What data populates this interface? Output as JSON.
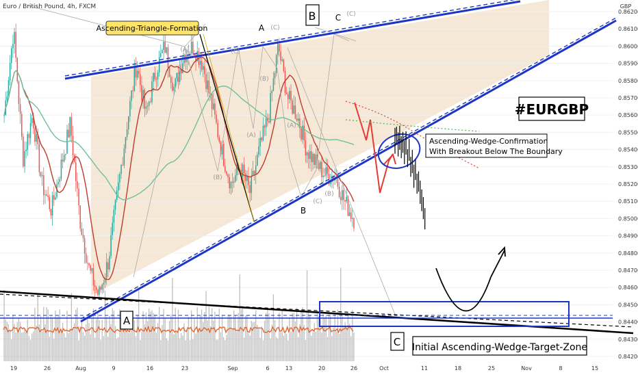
{
  "header": {
    "symbol_title": "Euro / British Pound, 4h, FXCM"
  },
  "currency_label": "GBP",
  "colors": {
    "up_candle": "#26a69a",
    "down_candle": "#ef5350",
    "zone_fill": "#f6e8d6",
    "trendline": "#1c35c4",
    "ma_red": "#c0392b",
    "ma_green": "#6fbf9a",
    "volume": "#888888",
    "projection": "#e53935"
  },
  "annotations": {
    "formation_label": "Ascending-Triangle-Formation",
    "hashtag": "#EURGBP",
    "confirmation_line1": "Ascending-Wedge-Confirmation",
    "confirmation_line2": "With Breakout Below The Boundary",
    "target_zone_label": "Initial Ascending-Wedge-Target-Zone",
    "box_a": "A",
    "box_b": "B",
    "box_c": "C",
    "wave_a": "A",
    "wave_b": "B",
    "wave_c": "C",
    "sub_a": "(A)",
    "sub_b": "(B)",
    "sub_c": "(C)"
  },
  "chart_data": {
    "type": "candlestick",
    "price_axis": {
      "ticks": [
        "0.86200",
        "0.86100",
        "0.86000",
        "0.85900",
        "0.85800",
        "0.85700",
        "0.85600",
        "0.85500",
        "0.85400",
        "0.85300",
        "0.85200",
        "0.85100",
        "0.85000",
        "0.84900",
        "0.84800",
        "0.84700",
        "0.84600",
        "0.84500",
        "0.84400",
        "0.84300",
        "0.84200"
      ],
      "range": [
        0.8419,
        0.8624
      ]
    },
    "time_axis": {
      "ticks": [
        "19",
        "26",
        "Aug",
        "9",
        "16",
        "23",
        "Sep",
        "6",
        "13",
        "20",
        "26",
        "Oct",
        "11",
        "18",
        "25",
        "Nov",
        "8",
        "15"
      ]
    },
    "price_path": [
      0.856,
      0.861,
      0.8535,
      0.856,
      0.852,
      0.8505,
      0.853,
      0.8555,
      0.85,
      0.847,
      0.8455,
      0.8475,
      0.8515,
      0.8555,
      0.859,
      0.856,
      0.8585,
      0.86,
      0.8575,
      0.8595,
      0.86,
      0.859,
      0.8565,
      0.854,
      0.852,
      0.853,
      0.8515,
      0.854,
      0.856,
      0.86,
      0.857,
      0.856,
      0.854,
      0.8532,
      0.8525,
      0.8525,
      0.851,
      0.85
    ],
    "trend_levels": {
      "upper_wedge": [
        0.8581,
        0.8649
      ],
      "lower_wedge": [
        0.8443,
        0.8612
      ],
      "target_zone": [
        0.8437,
        0.8452
      ],
      "support_line": 0.8442
    }
  }
}
